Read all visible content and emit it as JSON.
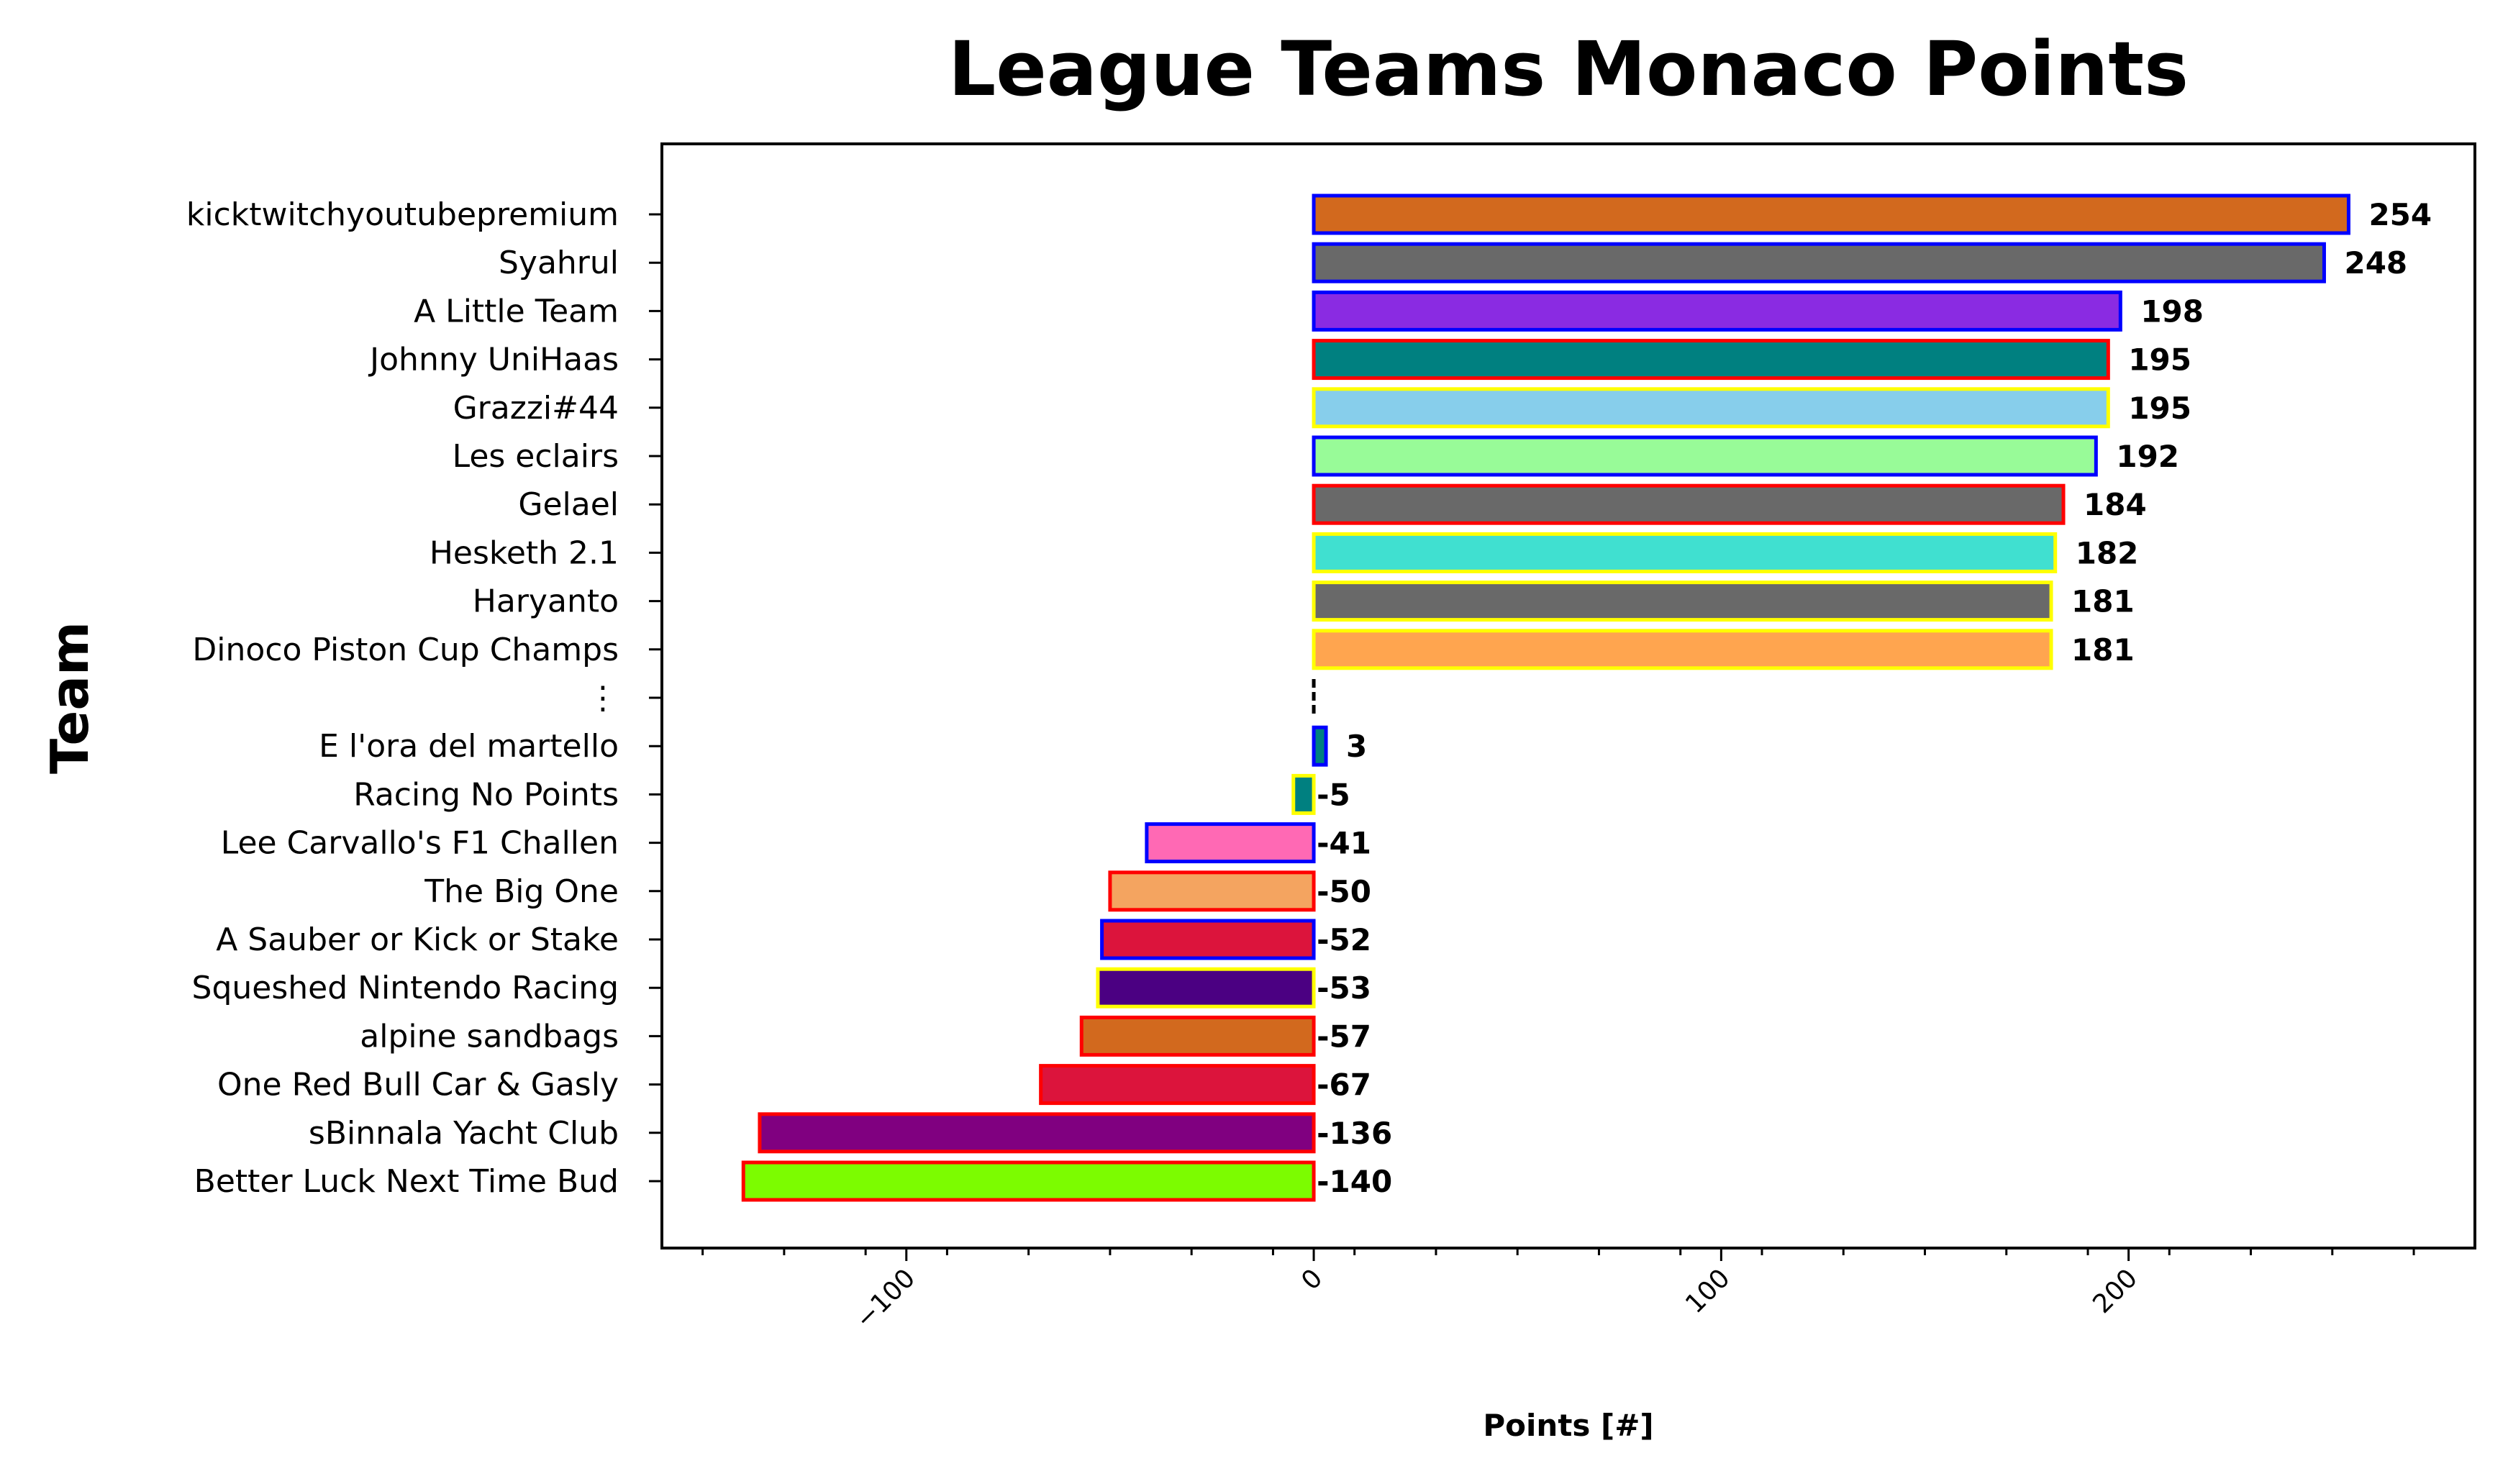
{
  "chart_data": {
    "type": "bar",
    "orientation": "horizontal",
    "title": "League Teams Monaco Points",
    "xlabel": "Points [#]",
    "ylabel": "Team",
    "xlim": [
      -160,
      285
    ],
    "xticks": [
      -100,
      0,
      100,
      200
    ],
    "xtick_labels": [
      "−100",
      "0",
      "100",
      "200"
    ],
    "grid": false,
    "legend": "none",
    "bars": [
      {
        "team": "kicktwitchyoutubepremium",
        "value": 254,
        "label": "254",
        "fill": "#D2691E",
        "edge": "#0000FF"
      },
      {
        "team": "Syahrul",
        "value": 248,
        "label": "248",
        "fill": "#696969",
        "edge": "#0000FF"
      },
      {
        "team": "A Little Team",
        "value": 198,
        "label": "198",
        "fill": "#8A2BE2",
        "edge": "#0000FF"
      },
      {
        "team": "Johnny UniHaas",
        "value": 195,
        "label": "195",
        "fill": "#008080",
        "edge": "#FF0000"
      },
      {
        "team": "Grazzi#44",
        "value": 195,
        "label": "195",
        "fill": "#87CEEB",
        "edge": "#FFFF00"
      },
      {
        "team": "Les eclairs",
        "value": 192,
        "label": "192",
        "fill": "#98FB98",
        "edge": "#0000FF"
      },
      {
        "team": "Gelael",
        "value": 184,
        "label": "184",
        "fill": "#696969",
        "edge": "#FF0000"
      },
      {
        "team": "Hesketh 2.1",
        "value": 182,
        "label": "182",
        "fill": "#40E0D0",
        "edge": "#FFFF00"
      },
      {
        "team": "Haryanto",
        "value": 181,
        "label": "181",
        "fill": "#696969",
        "edge": "#FFFF00"
      },
      {
        "team": "Dinoco Piston Cup Champs",
        "value": 181,
        "label": "181",
        "fill": "#FFA54F",
        "edge": "#FFFF00"
      },
      {
        "team": "⋮",
        "value": null,
        "label": "",
        "fill": "none",
        "edge": "none",
        "separator": true
      },
      {
        "team": "E l'ora del martello",
        "value": 3,
        "label": "3",
        "fill": "#008080",
        "edge": "#0000FF"
      },
      {
        "team": "Racing No Points",
        "value": -5,
        "label": "-5",
        "fill": "#008080",
        "edge": "#FFFF00"
      },
      {
        "team": "Lee Carvallo's F1 Challen",
        "value": -41,
        "label": "-41",
        "fill": "#FF69B4",
        "edge": "#0000FF"
      },
      {
        "team": "The Big One",
        "value": -50,
        "label": "-50",
        "fill": "#F4A460",
        "edge": "#FF0000"
      },
      {
        "team": "A Sauber or Kick or Stake",
        "value": -52,
        "label": "-52",
        "fill": "#DC143C",
        "edge": "#0000FF"
      },
      {
        "team": "Squeshed Nintendo Racing",
        "value": -53,
        "label": "-53",
        "fill": "#4B0082",
        "edge": "#FFFF00"
      },
      {
        "team": "alpine sandbags",
        "value": -57,
        "label": "-57",
        "fill": "#D2691E",
        "edge": "#FF0000"
      },
      {
        "team": "One Red Bull Car & Gasly",
        "value": -67,
        "label": "-67",
        "fill": "#DC143C",
        "edge": "#FF0000"
      },
      {
        "team": "sBinnala Yacht Club",
        "value": -136,
        "label": "-136",
        "fill": "#800080",
        "edge": "#FF0000"
      },
      {
        "team": "Better Luck Next Time Bud",
        "value": -140,
        "label": "-140",
        "fill": "#7CFC00",
        "edge": "#FF0000"
      }
    ]
  }
}
